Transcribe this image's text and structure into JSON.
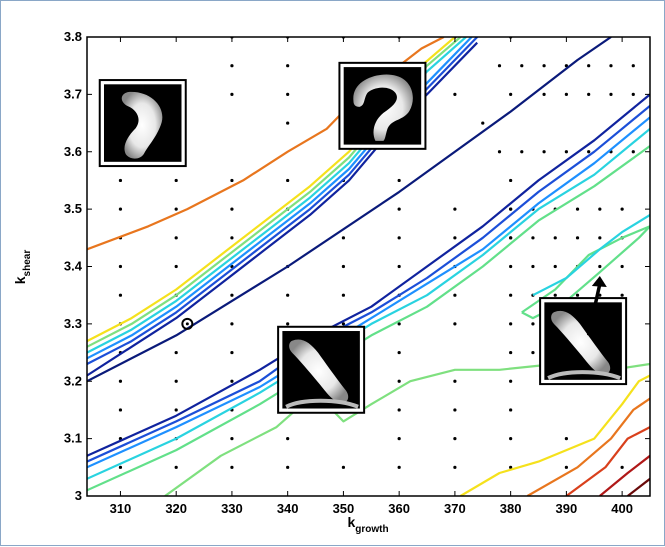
{
  "chart_data": {
    "type": "contour",
    "xlabel": "k",
    "xlabel_subscript": "growth",
    "ylabel": "k",
    "ylabel_subscript": "shear",
    "xlim": [
      304,
      405
    ],
    "ylim": [
      3.0,
      3.8
    ],
    "x_ticks": [
      "310",
      "320",
      "330",
      "340",
      "350",
      "360",
      "370",
      "380",
      "390",
      "400"
    ],
    "y_ticks": [
      "3",
      "3.1",
      "3.2",
      "3.3",
      "3.4",
      "3.5",
      "3.6",
      "3.7",
      "3.8"
    ],
    "grid": false,
    "colormap": "jet",
    "sample_points": [
      [
        330,
        3.8
      ],
      [
        340,
        3.8
      ],
      [
        350,
        3.8
      ],
      [
        360,
        3.8
      ],
      [
        370,
        3.8
      ],
      [
        380,
        3.8
      ],
      [
        330,
        3.75
      ],
      [
        340,
        3.75
      ],
      [
        350,
        3.75
      ],
      [
        355,
        3.75
      ],
      [
        330,
        3.7
      ],
      [
        340,
        3.7
      ],
      [
        350,
        3.7
      ],
      [
        360,
        3.7
      ],
      [
        370,
        3.7
      ],
      [
        380,
        3.7
      ],
      [
        310,
        3.65
      ],
      [
        320,
        3.65
      ],
      [
        340,
        3.65
      ],
      [
        350,
        3.65
      ],
      [
        375,
        3.65
      ],
      [
        310,
        3.55
      ],
      [
        320,
        3.55
      ],
      [
        330,
        3.55
      ],
      [
        340,
        3.55
      ],
      [
        350,
        3.55
      ],
      [
        360,
        3.55
      ],
      [
        380,
        3.55
      ],
      [
        310,
        3.5
      ],
      [
        320,
        3.5
      ],
      [
        330,
        3.5
      ],
      [
        340,
        3.5
      ],
      [
        360,
        3.5
      ],
      [
        370,
        3.5
      ],
      [
        380,
        3.5
      ],
      [
        310,
        3.45
      ],
      [
        320,
        3.45
      ],
      [
        330,
        3.45
      ],
      [
        350,
        3.45
      ],
      [
        360,
        3.45
      ],
      [
        370,
        3.45
      ],
      [
        380,
        3.45
      ],
      [
        310,
        3.4
      ],
      [
        320,
        3.4
      ],
      [
        330,
        3.4
      ],
      [
        340,
        3.4
      ],
      [
        350,
        3.4
      ],
      [
        360,
        3.4
      ],
      [
        370,
        3.4
      ],
      [
        310,
        3.35
      ],
      [
        320,
        3.35
      ],
      [
        330,
        3.35
      ],
      [
        340,
        3.35
      ],
      [
        350,
        3.35
      ],
      [
        360,
        3.35
      ],
      [
        370,
        3.35
      ],
      [
        310,
        3.3
      ],
      [
        330,
        3.3
      ],
      [
        340,
        3.3
      ],
      [
        350,
        3.3
      ],
      [
        360,
        3.3
      ],
      [
        370,
        3.3
      ],
      [
        310,
        3.25
      ],
      [
        320,
        3.25
      ],
      [
        330,
        3.25
      ],
      [
        340,
        3.25
      ],
      [
        350,
        3.25
      ],
      [
        360,
        3.25
      ],
      [
        380,
        3.25
      ],
      [
        310,
        3.2
      ],
      [
        320,
        3.2
      ],
      [
        330,
        3.2
      ],
      [
        340,
        3.2
      ],
      [
        350,
        3.2
      ],
      [
        360,
        3.2
      ],
      [
        370,
        3.2
      ],
      [
        380,
        3.2
      ],
      [
        310,
        3.15
      ],
      [
        320,
        3.15
      ],
      [
        330,
        3.15
      ],
      [
        340,
        3.15
      ],
      [
        360,
        3.15
      ],
      [
        370,
        3.15
      ],
      [
        380,
        3.15
      ],
      [
        310,
        3.1
      ],
      [
        320,
        3.1
      ],
      [
        330,
        3.1
      ],
      [
        340,
        3.1
      ],
      [
        360,
        3.1
      ],
      [
        370,
        3.1
      ],
      [
        380,
        3.1
      ],
      [
        390,
        3.1
      ],
      [
        310,
        3.05
      ],
      [
        320,
        3.05
      ],
      [
        330,
        3.05
      ],
      [
        340,
        3.05
      ],
      [
        350,
        3.05
      ],
      [
        360,
        3.05
      ],
      [
        370,
        3.05
      ],
      [
        380,
        3.05
      ],
      [
        390,
        3.05
      ],
      [
        400,
        3.05
      ],
      [
        378,
        3.75
      ],
      [
        382,
        3.75
      ],
      [
        386,
        3.75
      ],
      [
        390,
        3.75
      ],
      [
        394,
        3.75
      ],
      [
        398,
        3.75
      ],
      [
        402,
        3.75
      ],
      [
        386,
        3.7
      ],
      [
        390,
        3.7
      ],
      [
        394,
        3.7
      ],
      [
        398,
        3.7
      ],
      [
        402,
        3.7
      ],
      [
        378,
        3.6
      ],
      [
        382,
        3.6
      ],
      [
        386,
        3.6
      ],
      [
        390,
        3.6
      ],
      [
        394,
        3.6
      ],
      [
        398,
        3.6
      ],
      [
        402,
        3.6
      ],
      [
        380,
        3.5
      ],
      [
        384,
        3.5
      ],
      [
        388,
        3.5
      ],
      [
        392,
        3.5
      ],
      [
        396,
        3.5
      ],
      [
        400,
        3.5
      ],
      [
        380,
        3.45
      ],
      [
        384,
        3.45
      ],
      [
        388,
        3.45
      ],
      [
        392,
        3.45
      ],
      [
        396,
        3.45
      ],
      [
        400,
        3.45
      ],
      [
        380,
        3.4
      ],
      [
        384,
        3.4
      ],
      [
        388,
        3.4
      ],
      [
        392,
        3.4
      ],
      [
        396,
        3.4
      ],
      [
        400,
        3.4
      ],
      [
        380,
        3.35
      ],
      [
        384,
        3.35
      ],
      [
        388,
        3.35
      ],
      [
        392,
        3.35
      ],
      [
        396,
        3.35
      ],
      [
        400,
        3.35
      ],
      [
        380,
        3.3
      ],
      [
        384,
        3.3
      ],
      [
        388,
        3.3
      ],
      [
        392,
        3.3
      ],
      [
        396,
        3.3
      ],
      [
        400,
        3.3
      ],
      [
        384,
        3.25
      ],
      [
        388,
        3.25
      ],
      [
        392,
        3.25
      ],
      [
        396,
        3.25
      ],
      [
        400,
        3.25
      ]
    ],
    "highlighted_point": [
      322,
      3.3
    ],
    "contours": [
      {
        "color": "#e8761e",
        "points": [
          [
            304,
            3.43
          ],
          [
            315,
            3.47
          ],
          [
            322,
            3.5
          ],
          [
            332,
            3.55
          ],
          [
            340,
            3.6
          ],
          [
            347,
            3.64
          ],
          [
            353,
            3.7
          ],
          [
            360,
            3.75
          ],
          [
            364,
            3.78
          ],
          [
            368,
            3.8
          ]
        ]
      },
      {
        "color": "#f5e11c",
        "points": [
          [
            304,
            3.27
          ],
          [
            312,
            3.31
          ],
          [
            320,
            3.36
          ],
          [
            328,
            3.42
          ],
          [
            336,
            3.48
          ],
          [
            344,
            3.54
          ],
          [
            351,
            3.6
          ],
          [
            358,
            3.68
          ],
          [
            364,
            3.75
          ],
          [
            370,
            3.8
          ]
        ]
      },
      {
        "color": "#7fe07f",
        "points": [
          [
            304,
            3.26
          ],
          [
            312,
            3.3
          ],
          [
            320,
            3.35
          ],
          [
            328,
            3.41
          ],
          [
            336,
            3.47
          ],
          [
            344,
            3.53
          ],
          [
            351,
            3.59
          ],
          [
            358,
            3.67
          ],
          [
            365,
            3.75
          ],
          [
            371,
            3.8
          ]
        ]
      },
      {
        "color": "#29d3e0",
        "points": [
          [
            304,
            3.25
          ],
          [
            312,
            3.29
          ],
          [
            320,
            3.34
          ],
          [
            328,
            3.4
          ],
          [
            336,
            3.46
          ],
          [
            344,
            3.52
          ],
          [
            351,
            3.58
          ],
          [
            358,
            3.66
          ],
          [
            365,
            3.74
          ],
          [
            372,
            3.8
          ]
        ]
      },
      {
        "color": "#1e90ff",
        "points": [
          [
            304,
            3.24
          ],
          [
            312,
            3.28
          ],
          [
            320,
            3.33
          ],
          [
            328,
            3.39
          ],
          [
            336,
            3.45
          ],
          [
            344,
            3.51
          ],
          [
            351,
            3.57
          ],
          [
            358,
            3.65
          ],
          [
            366,
            3.73
          ],
          [
            373,
            3.8
          ]
        ]
      },
      {
        "color": "#1c4fd8",
        "points": [
          [
            304,
            3.23
          ],
          [
            312,
            3.27
          ],
          [
            320,
            3.32
          ],
          [
            328,
            3.38
          ],
          [
            336,
            3.44
          ],
          [
            344,
            3.5
          ],
          [
            351,
            3.56
          ],
          [
            358,
            3.64
          ],
          [
            366,
            3.72
          ],
          [
            374,
            3.8
          ]
        ]
      },
      {
        "color": "#10239e",
        "points": [
          [
            304,
            3.21
          ],
          [
            312,
            3.26
          ],
          [
            320,
            3.31
          ],
          [
            328,
            3.37
          ],
          [
            336,
            3.43
          ],
          [
            344,
            3.49
          ],
          [
            351,
            3.55
          ],
          [
            358,
            3.63
          ],
          [
            366,
            3.71
          ],
          [
            374,
            3.79
          ]
        ]
      },
      {
        "color": "#0a1a7a",
        "points": [
          [
            304,
            3.2
          ],
          [
            320,
            3.28
          ],
          [
            340,
            3.4
          ],
          [
            360,
            3.53
          ],
          [
            380,
            3.67
          ],
          [
            392,
            3.76
          ],
          [
            398,
            3.8
          ]
        ]
      },
      {
        "color": "#10239e",
        "points": [
          [
            304,
            3.07
          ],
          [
            320,
            3.14
          ],
          [
            335,
            3.22
          ],
          [
            345,
            3.28
          ],
          [
            355,
            3.33
          ],
          [
            365,
            3.4
          ],
          [
            375,
            3.47
          ],
          [
            385,
            3.55
          ],
          [
            395,
            3.62
          ],
          [
            405,
            3.7
          ]
        ]
      },
      {
        "color": "#1c4fd8",
        "points": [
          [
            304,
            3.06
          ],
          [
            320,
            3.13
          ],
          [
            335,
            3.2
          ],
          [
            345,
            3.27
          ],
          [
            355,
            3.32
          ],
          [
            365,
            3.38
          ],
          [
            375,
            3.45
          ],
          [
            385,
            3.53
          ],
          [
            395,
            3.6
          ],
          [
            405,
            3.68
          ]
        ]
      },
      {
        "color": "#1e90ff",
        "points": [
          [
            304,
            3.05
          ],
          [
            320,
            3.12
          ],
          [
            335,
            3.19
          ],
          [
            345,
            3.25
          ],
          [
            355,
            3.31
          ],
          [
            365,
            3.37
          ],
          [
            375,
            3.43
          ],
          [
            385,
            3.51
          ],
          [
            395,
            3.58
          ],
          [
            405,
            3.66
          ]
        ]
      },
      {
        "color": "#29d3e0",
        "points": [
          [
            304,
            3.03
          ],
          [
            320,
            3.1
          ],
          [
            335,
            3.18
          ],
          [
            345,
            3.24
          ],
          [
            355,
            3.3
          ],
          [
            365,
            3.35
          ],
          [
            375,
            3.42
          ],
          [
            385,
            3.5
          ],
          [
            395,
            3.56
          ],
          [
            405,
            3.64
          ]
        ]
      },
      {
        "color": "#62e08a",
        "points": [
          [
            304,
            3.01
          ],
          [
            320,
            3.08
          ],
          [
            335,
            3.16
          ],
          [
            345,
            3.22
          ],
          [
            355,
            3.28
          ],
          [
            365,
            3.33
          ],
          [
            375,
            3.4
          ],
          [
            385,
            3.48
          ],
          [
            395,
            3.54
          ],
          [
            405,
            3.61
          ]
        ]
      },
      {
        "color": "#7fe07f",
        "points": [
          [
            318,
            3.0
          ],
          [
            328,
            3.07
          ],
          [
            338,
            3.12
          ],
          [
            345,
            3.18
          ],
          [
            350,
            3.13
          ],
          [
            355,
            3.16
          ],
          [
            362,
            3.2
          ],
          [
            370,
            3.22
          ],
          [
            378,
            3.22
          ],
          [
            388,
            3.23
          ],
          [
            398,
            3.22
          ],
          [
            405,
            3.23
          ]
        ]
      },
      {
        "color": "#62e08a",
        "points": [
          [
            382,
            3.32
          ],
          [
            388,
            3.36
          ],
          [
            394,
            3.42
          ],
          [
            400,
            3.45
          ],
          [
            405,
            3.47
          ],
          [
            403,
            3.45
          ],
          [
            396,
            3.39
          ],
          [
            390,
            3.34
          ],
          [
            384,
            3.31
          ],
          [
            382,
            3.32
          ]
        ]
      },
      {
        "color": "#29d3e0",
        "points": [
          [
            384,
            3.35
          ],
          [
            390,
            3.38
          ],
          [
            396,
            3.43
          ],
          [
            400,
            3.46
          ],
          [
            405,
            3.49
          ]
        ]
      },
      {
        "color": "#f5e11c",
        "points": [
          [
            371,
            3.0
          ],
          [
            378,
            3.04
          ],
          [
            385,
            3.06
          ],
          [
            395,
            3.1
          ],
          [
            400,
            3.16
          ],
          [
            403,
            3.2
          ],
          [
            405,
            3.21
          ]
        ]
      },
      {
        "color": "#e8761e",
        "points": [
          [
            383,
            3.0
          ],
          [
            392,
            3.05
          ],
          [
            398,
            3.1
          ],
          [
            402,
            3.15
          ],
          [
            405,
            3.17
          ]
        ]
      },
      {
        "color": "#d9401c",
        "points": [
          [
            390,
            3.0
          ],
          [
            397,
            3.05
          ],
          [
            401,
            3.1
          ],
          [
            405,
            3.12
          ]
        ]
      },
      {
        "color": "#b01818",
        "points": [
          [
            396,
            3.0
          ],
          [
            401,
            3.04
          ],
          [
            405,
            3.07
          ]
        ]
      },
      {
        "color": "#6a0a0a",
        "points": [
          [
            401,
            3.0
          ],
          [
            405,
            3.03
          ]
        ]
      }
    ],
    "insets": [
      {
        "id": "inset-1",
        "shape": "crescent",
        "anchor_x": 314,
        "anchor_y": 3.65
      },
      {
        "id": "inset-2",
        "shape": "question-mark",
        "anchor_x": 357,
        "anchor_y": 3.68
      },
      {
        "id": "inset-3",
        "shape": "diagonal-streak",
        "anchor_x": 346,
        "anchor_y": 3.22
      },
      {
        "id": "inset-4",
        "shape": "diagonal-streak",
        "anchor_x": 393,
        "anchor_y": 3.27
      }
    ],
    "arrow": {
      "from": [
        394,
        3.28
      ],
      "to": [
        396,
        3.38
      ]
    }
  }
}
